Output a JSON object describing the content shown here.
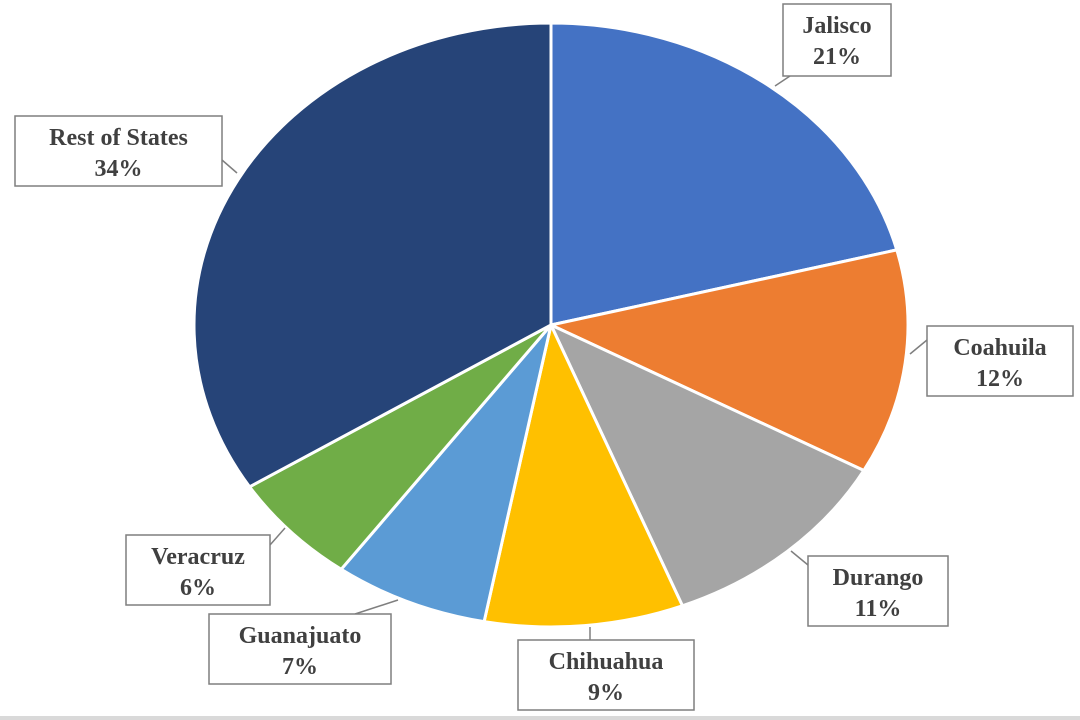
{
  "chart_data": {
    "type": "pie",
    "categories": [
      "Jalisco",
      "Coahuila",
      "Durango",
      "Chihuahua",
      "Guanajuato",
      "Veracruz",
      "Rest of States"
    ],
    "values": [
      21,
      12,
      11,
      9,
      7,
      6,
      34
    ],
    "value_labels": [
      "21%",
      "12%",
      "11%",
      "9%",
      "7%",
      "6%",
      "34%"
    ],
    "colors": [
      "#4472c4",
      "#ed7d31",
      "#a5a5a5",
      "#ffc000",
      "#5b9bd5",
      "#70ad47",
      "#264478"
    ],
    "start": "12 o'clock",
    "direction": "clockwise",
    "legend": "none",
    "labels": "callout boxes"
  }
}
